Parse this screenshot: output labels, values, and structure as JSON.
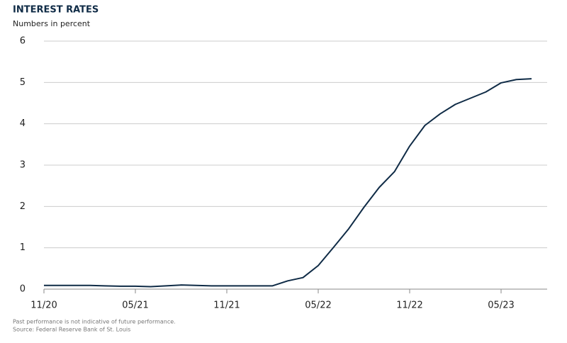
{
  "chart_data": {
    "type": "line",
    "title": "INTEREST RATES",
    "subtitle": "Numbers in percent",
    "categories": [
      "11/20",
      null,
      null,
      null,
      null,
      null,
      "05/21",
      null,
      null,
      null,
      null,
      null,
      "11/21",
      null,
      null,
      null,
      null,
      null,
      "05/22",
      null,
      null,
      null,
      null,
      null,
      "11/22",
      null,
      null,
      null,
      null,
      null,
      "05/23",
      null,
      null
    ],
    "series": [
      {
        "color": "#0f2b46",
        "values": [
          0.09,
          0.09,
          0.09,
          0.09,
          0.08,
          0.07,
          0.07,
          0.06,
          0.08,
          0.1,
          0.09,
          0.08,
          0.08,
          0.08,
          0.08,
          0.08,
          0.2,
          0.28,
          0.57,
          1.01,
          1.46,
          1.98,
          2.46,
          2.84,
          3.46,
          3.96,
          4.24,
          4.47,
          4.62,
          4.77,
          4.99,
          5.07,
          5.09
        ]
      }
    ],
    "ylim": [
      0,
      6
    ],
    "yticks": [
      0,
      1,
      2,
      3,
      4,
      5,
      6
    ],
    "grid": true,
    "notes": [
      "Past performance is not indicative of future performance.",
      "Source: Federal Reserve Bank of St. Louis"
    ]
  }
}
